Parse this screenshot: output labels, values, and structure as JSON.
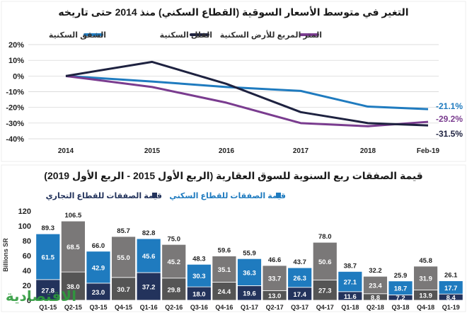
{
  "top_chart": {
    "title": "التغير في متوسط الأسعار السوقية (القطاع السكني) منذ 2014 حتى تاريخه",
    "colors": {
      "apartments": "#1f7bbf",
      "villas": "#1e2240",
      "land": "#7a3c8f",
      "grid": "#d0d0d0",
      "panel_bg": "#ffffff"
    }
  },
  "bottom_chart": {
    "title": "قيمة الصفقات ربع السنوية للسوق العقارية (الربع الأول 2015 - الربع الأول 2019)",
    "legend_residential": "قيمة الصفقات للقطاع السكني",
    "legend_commercial": "قيمة الصفقات للقطاع التجاري",
    "colors": {
      "residential_odd": "#1f7bbf",
      "residential_even": "#7a7878",
      "commercial_odd": "#23335c",
      "commercial_even": "#555555",
      "axis_text": "#222222"
    }
  },
  "watermark": "الاقتصادية",
  "chart_data": [
    {
      "type": "line",
      "title": "التغير في متوسط الأسعار السوقية (القطاع السكني) منذ 2014 حتى تاريخه",
      "x": [
        "2014",
        "2015",
        "2016",
        "2017",
        "2018",
        "Feb-19"
      ],
      "yticks": [
        "-40%",
        "-30%",
        "-20%",
        "-10%",
        "0%",
        "10%",
        "20%"
      ],
      "ylim": [
        -40,
        20
      ],
      "ytick_values": [
        -40,
        -30,
        -20,
        -10,
        0,
        10,
        20
      ],
      "series": [
        {
          "key": "apartments",
          "name": "الشقق السكنية",
          "values": [
            0,
            -3.5,
            -7,
            -9.5,
            -19.5,
            -21.1
          ],
          "end_label": "-21.1%"
        },
        {
          "key": "villas",
          "name": "الفلل السكنية",
          "values": [
            0,
            9,
            -5,
            -23,
            -30,
            -31.5
          ],
          "end_label": "-31.5%"
        },
        {
          "key": "land",
          "name": "المتر المربع للأرض السكنية",
          "values": [
            0,
            -7,
            -17,
            -30,
            -32,
            -29.2
          ],
          "end_label": "-29.2%"
        }
      ]
    },
    {
      "type": "bar",
      "stacked": true,
      "title": "قيمة الصفقات ربع السنوية للسوق العقارية (الربع الأول 2015 - الربع الأول 2019)",
      "ylabel": "Billions SR",
      "ylim": [
        0,
        120
      ],
      "yticks": [
        "0",
        "20",
        "40",
        "60",
        "80",
        "100",
        "120"
      ],
      "ytick_values": [
        0,
        20,
        40,
        60,
        80,
        100,
        120
      ],
      "categories": [
        "Q1-15",
        "Q2-15",
        "Q3-15",
        "Q4-15",
        "Q1-16",
        "Q2-16",
        "Q3-16",
        "Q4-16",
        "Q1-17",
        "Q2-17",
        "Q3-17",
        "Q4-17",
        "Q1-18",
        "Q2-18",
        "Q3-18",
        "Q4-18",
        "Q1-19"
      ],
      "series": [
        {
          "name": "قيمة الصفقات للقطاع التجاري",
          "values": [
            27.8,
            38.0,
            23.0,
            30.7,
            37.2,
            29.8,
            18.0,
            24.4,
            19.6,
            13.0,
            17.4,
            27.3,
            11.6,
            8.8,
            7.2,
            13.9,
            8.4
          ]
        },
        {
          "name": "قيمة الصفقات للقطاع السكني",
          "values": [
            61.5,
            68.5,
            42.9,
            55.0,
            45.6,
            45.2,
            30.3,
            35.1,
            36.3,
            33.7,
            26.3,
            50.6,
            27.1,
            23.4,
            18.7,
            31.9,
            17.7
          ]
        }
      ],
      "totals": [
        89.3,
        106.5,
        66.0,
        85.7,
        82.8,
        75.0,
        48.3,
        59.6,
        55.9,
        46.6,
        43.7,
        78.0,
        38.7,
        32.2,
        25.9,
        45.8,
        26.1
      ]
    }
  ]
}
